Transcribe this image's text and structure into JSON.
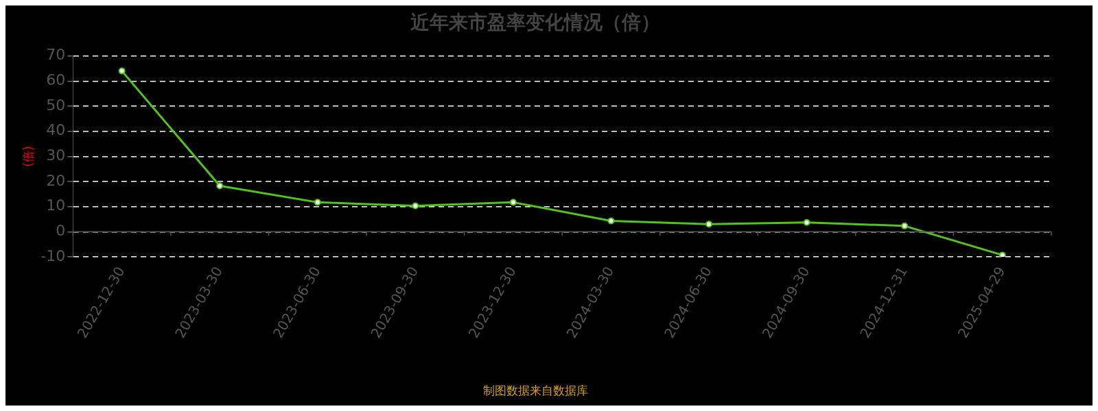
{
  "chart_data": {
    "type": "line",
    "title": "近年来市盈率变化情况（倍）",
    "ylabel": "(倍)",
    "annotations": [
      "制图数据来自数据库"
    ],
    "categories": [
      "2022-12-30",
      "2023-03-30",
      "2023-06-30",
      "2023-09-30",
      "2023-12-30",
      "2024-03-30",
      "2024-06-30",
      "2024-09-30",
      "2024-12-31",
      "2025-04-29"
    ],
    "series": [
      {
        "color": "#52c41a",
        "values": [
          64,
          18.3,
          11.7,
          10.3,
          11.7,
          4.3,
          3.0,
          3.7,
          2.3,
          -9.3
        ]
      }
    ],
    "ylim": [
      -10,
      70
    ],
    "yticks": [
      -10,
      0,
      10,
      20,
      30,
      40,
      50,
      60,
      70
    ],
    "grid": "y",
    "legend": false,
    "marker": "circle",
    "line_style": "solid"
  }
}
